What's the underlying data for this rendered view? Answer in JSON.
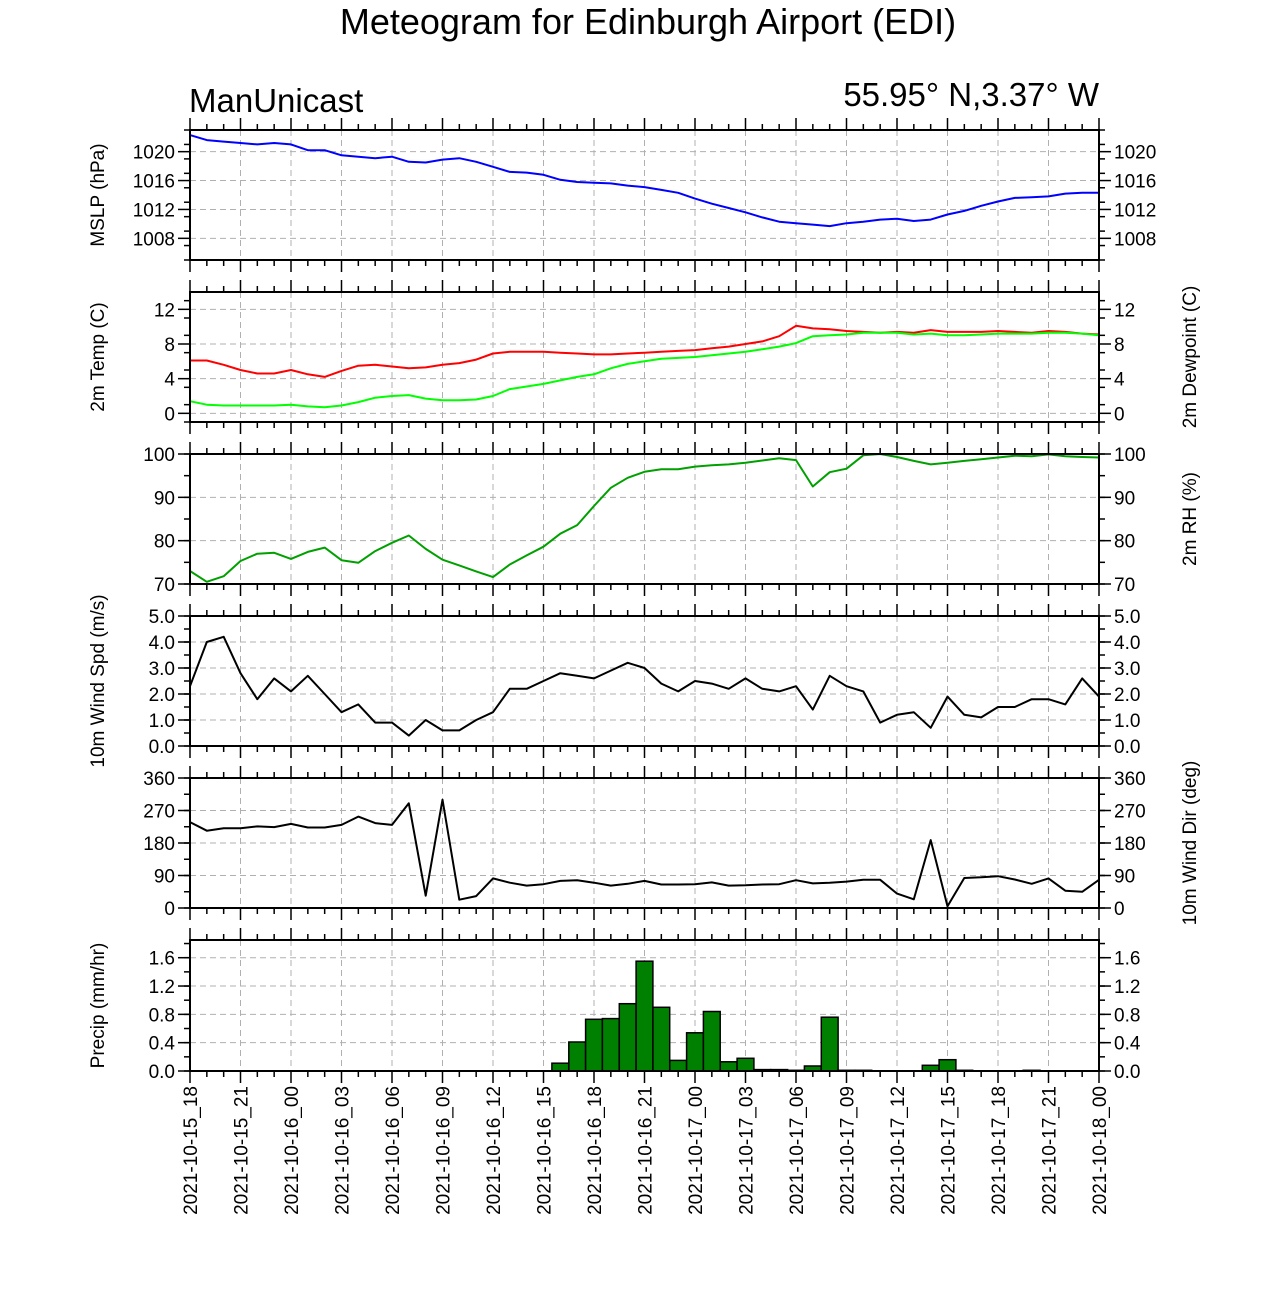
{
  "title": "Meteogram for Edinburgh Airport (EDI)",
  "source_label": "ManUnicast",
  "location_label": "55.95° N,3.37° W",
  "x_tick_labels": [
    "2021-10-15_18",
    "2021-10-15_21",
    "2021-10-16_00",
    "2021-10-16_03",
    "2021-10-16_06",
    "2021-10-16_09",
    "2021-10-16_12",
    "2021-10-16_15",
    "2021-10-16_18",
    "2021-10-16_21",
    "2021-10-17_00",
    "2021-10-17_03",
    "2021-10-17_06",
    "2021-10-17_09",
    "2021-10-17_12",
    "2021-10-17_15",
    "2021-10-17_18",
    "2021-10-17_21",
    "2021-10-18_00"
  ],
  "chart_data": [
    {
      "type": "line",
      "id": "mslp",
      "ylabel": "MSLP (hPa)",
      "ylabel_right": "",
      "x_unit": "hours since 2021-10-15_18",
      "xlim": [
        0,
        54
      ],
      "ylim": [
        1005,
        1023
      ],
      "yticks": [
        1008,
        1012,
        1016,
        1020
      ],
      "ytick_labels": [
        "1008",
        "1012",
        "1016",
        "1020"
      ],
      "series": [
        {
          "name": "MSLP",
          "color": "#0000ff",
          "x_step": 1,
          "values": [
            1022.3,
            1021.6,
            1021.4,
            1021.2,
            1021.0,
            1021.2,
            1021.0,
            1020.2,
            1020.2,
            1019.5,
            1019.3,
            1019.1,
            1019.3,
            1018.6,
            1018.5,
            1018.9,
            1019.1,
            1018.6,
            1017.9,
            1017.2,
            1017.1,
            1016.8,
            1016.1,
            1015.8,
            1015.7,
            1015.6,
            1015.3,
            1015.1,
            1014.7,
            1014.3,
            1013.5,
            1012.8,
            1012.2,
            1011.6,
            1010.9,
            1010.3,
            1010.1,
            1009.9,
            1009.7,
            1010.1,
            1010.3,
            1010.6,
            1010.7,
            1010.4,
            1010.6,
            1011.3,
            1011.8,
            1012.5,
            1013.1,
            1013.6,
            1013.7,
            1013.8,
            1014.2,
            1014.3,
            1014.3
          ]
        }
      ]
    },
    {
      "type": "line",
      "id": "temp",
      "ylabel": "2m Temp (C)",
      "ylabel_right": "2m Dewpoint (C)",
      "x_unit": "hours since 2021-10-15_18",
      "xlim": [
        0,
        54
      ],
      "ylim": [
        -1,
        14
      ],
      "yticks": [
        0,
        4,
        8,
        12
      ],
      "ytick_labels": [
        "0",
        "4",
        "8",
        "12"
      ],
      "series": [
        {
          "name": "2m Temp",
          "color": "#ff0000",
          "x_step": 1,
          "values": [
            6.1,
            6.1,
            5.6,
            5.0,
            4.6,
            4.6,
            5.0,
            4.5,
            4.2,
            4.9,
            5.5,
            5.6,
            5.4,
            5.2,
            5.3,
            5.6,
            5.8,
            6.2,
            6.9,
            7.1,
            7.1,
            7.1,
            7.0,
            6.9,
            6.8,
            6.8,
            6.9,
            7.0,
            7.1,
            7.2,
            7.3,
            7.5,
            7.7,
            8.0,
            8.3,
            8.9,
            10.1,
            9.8,
            9.7,
            9.5,
            9.4,
            9.3,
            9.4,
            9.3,
            9.6,
            9.4,
            9.4,
            9.4,
            9.5,
            9.4,
            9.3,
            9.5,
            9.4,
            9.2,
            9.1
          ]
        },
        {
          "name": "2m Dewpoint",
          "color": "#00ff00",
          "x_step": 1,
          "values": [
            1.4,
            1.0,
            0.9,
            0.9,
            0.9,
            0.9,
            1.0,
            0.8,
            0.7,
            0.9,
            1.3,
            1.8,
            2.0,
            2.1,
            1.7,
            1.5,
            1.5,
            1.6,
            2.0,
            2.8,
            3.1,
            3.4,
            3.8,
            4.2,
            4.5,
            5.2,
            5.7,
            6.0,
            6.3,
            6.4,
            6.5,
            6.7,
            6.9,
            7.1,
            7.4,
            7.7,
            8.1,
            8.9,
            9.0,
            9.1,
            9.3,
            9.3,
            9.3,
            9.1,
            9.2,
            9.0,
            9.0,
            9.1,
            9.2,
            9.2,
            9.2,
            9.3,
            9.3,
            9.2,
            9.0
          ]
        }
      ]
    },
    {
      "type": "line",
      "id": "rh",
      "ylabel": "",
      "ylabel_right": "2m RH (%)",
      "x_unit": "hours since 2021-10-15_18",
      "xlim": [
        0,
        54
      ],
      "ylim": [
        70,
        100
      ],
      "yticks": [
        70,
        80,
        90,
        100
      ],
      "ytick_labels": [
        "70",
        "80",
        "90",
        "100"
      ],
      "series": [
        {
          "name": "2m RH",
          "color": "#00a000",
          "x_step": 1,
          "values": [
            73.0,
            70.5,
            71.8,
            75.3,
            77.0,
            77.2,
            75.8,
            77.4,
            78.4,
            75.5,
            74.9,
            77.6,
            79.5,
            81.2,
            78.1,
            75.6,
            74.3,
            72.9,
            71.6,
            74.5,
            76.6,
            78.6,
            81.6,
            83.6,
            88.0,
            92.2,
            94.5,
            95.9,
            96.5,
            96.5,
            97.1,
            97.4,
            97.6,
            98.0,
            98.5,
            99.0,
            98.6,
            92.5,
            95.8,
            96.6,
            99.7,
            100.0,
            99.3,
            98.4,
            97.6,
            98.0,
            98.4,
            98.8,
            99.2,
            99.6,
            99.5,
            99.9,
            99.5,
            99.3,
            99.2
          ]
        }
      ]
    },
    {
      "type": "line",
      "id": "wspd",
      "ylabel": "10m Wind Spd (m/s)",
      "ylabel_right": "",
      "x_unit": "hours since 2021-10-15_18",
      "xlim": [
        0,
        54
      ],
      "ylim": [
        0,
        5
      ],
      "yticks": [
        0,
        1,
        2,
        3,
        4,
        5
      ],
      "ytick_labels": [
        "0.0",
        "1.0",
        "2.0",
        "3.0",
        "4.0",
        "5.0"
      ],
      "series": [
        {
          "name": "10m Wind Speed",
          "color": "#000000",
          "x_step": 1,
          "values": [
            2.3,
            4.0,
            4.2,
            2.8,
            1.8,
            2.6,
            2.1,
            2.7,
            2.0,
            1.3,
            1.6,
            0.9,
            0.9,
            0.4,
            1.0,
            0.6,
            0.6,
            1.0,
            1.3,
            2.2,
            2.2,
            2.5,
            2.8,
            2.7,
            2.6,
            2.9,
            3.2,
            3.0,
            2.4,
            2.1,
            2.5,
            2.4,
            2.2,
            2.6,
            2.2,
            2.1,
            2.3,
            1.4,
            2.7,
            2.3,
            2.1,
            0.9,
            1.2,
            1.3,
            0.7,
            1.9,
            1.2,
            1.1,
            1.5,
            1.5,
            1.8,
            1.8,
            1.6,
            2.6,
            1.9
          ]
        }
      ]
    },
    {
      "type": "line",
      "id": "wdir",
      "ylabel": "",
      "ylabel_right": "10m Wind Dir (deg)",
      "x_unit": "hours since 2021-10-15_18",
      "xlim": [
        0,
        54
      ],
      "ylim": [
        0,
        360
      ],
      "yticks": [
        0,
        90,
        180,
        270,
        360
      ],
      "ytick_labels": [
        "0",
        "90",
        "180",
        "270",
        "360"
      ],
      "series": [
        {
          "name": "10m Wind Direction",
          "color": "#000000",
          "x_step": 1,
          "values": [
            238,
            214,
            221,
            221,
            226,
            224,
            233,
            223,
            223,
            230,
            253,
            235,
            230,
            290,
            34,
            300,
            23,
            33,
            82,
            70,
            62,
            66,
            75,
            77,
            70,
            62,
            67,
            75,
            65,
            65,
            66,
            71,
            62,
            63,
            65,
            66,
            77,
            68,
            70,
            73,
            78,
            78,
            40,
            24,
            188,
            5,
            83,
            85,
            88,
            79,
            67,
            82,
            48,
            45,
            78
          ]
        }
      ]
    },
    {
      "type": "bar",
      "id": "precip",
      "ylabel": "Precip (mm/hr)",
      "ylabel_right": "",
      "x_unit": "hours since 2021-10-15_18",
      "xlim": [
        0,
        54
      ],
      "ylim": [
        0,
        1.85
      ],
      "yticks": [
        0,
        0.4,
        0.8,
        1.2,
        1.6
      ],
      "ytick_labels": [
        "0.0",
        "0.4",
        "0.8",
        "1.2",
        "1.6"
      ],
      "bar_color": "#008000",
      "bar_x_start": 22,
      "x_step": 1,
      "values": [
        0.11,
        0.41,
        0.73,
        0.74,
        0.95,
        1.55,
        0.9,
        0.15,
        0.54,
        0.84,
        0.13,
        0.18,
        0.02,
        0.02,
        0.01,
        0.07,
        0.76,
        0.01,
        0.01,
        0.0,
        0.0,
        0.0,
        0.08,
        0.16,
        0.01,
        0.0,
        0.0,
        0.0,
        0.01,
        0.0,
        0.0,
        0.0
      ]
    }
  ]
}
